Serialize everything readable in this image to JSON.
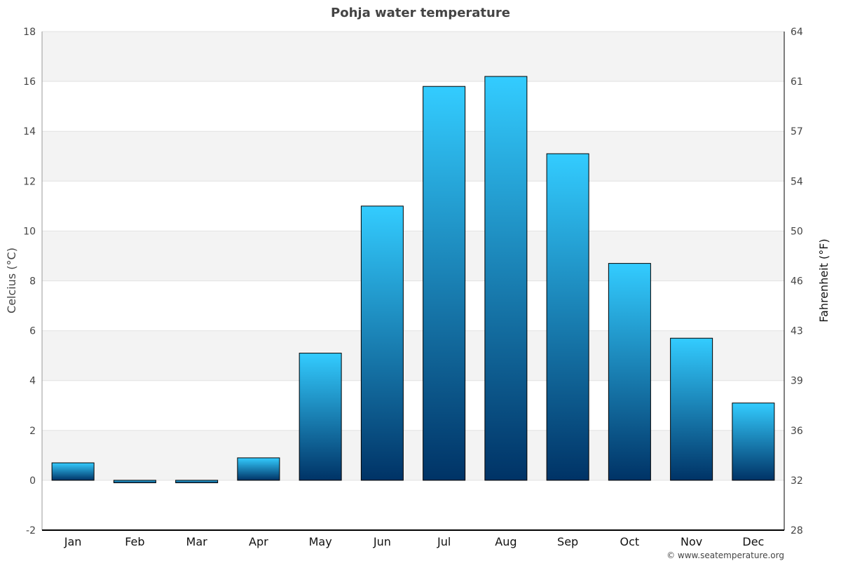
{
  "chart_data": {
    "type": "bar",
    "title": "Pohja water temperature",
    "ylabel": "Celcius (°C)",
    "y2label": "Fahrenheit (°F)",
    "categories": [
      "Jan",
      "Feb",
      "Mar",
      "Apr",
      "May",
      "Jun",
      "Jul",
      "Aug",
      "Sep",
      "Oct",
      "Nov",
      "Dec"
    ],
    "values": [
      0.7,
      -0.1,
      -0.1,
      0.9,
      5.1,
      11.0,
      15.8,
      16.2,
      13.1,
      8.7,
      5.7,
      3.1
    ],
    "ylim": [
      -2,
      18
    ],
    "yticks": [
      -2,
      0,
      2,
      4,
      6,
      8,
      10,
      12,
      14,
      16,
      18
    ],
    "y2ticks": [
      "28",
      "32",
      "36",
      "39",
      "43",
      "46",
      "50",
      "54",
      "57",
      "61",
      "64"
    ],
    "grid": true,
    "colors": {
      "bar_top": "#33ccff",
      "bar_bottom": "#003366",
      "band": "#f3f3f3"
    }
  },
  "footer": {
    "credit": "© www.seatemperature.org"
  }
}
